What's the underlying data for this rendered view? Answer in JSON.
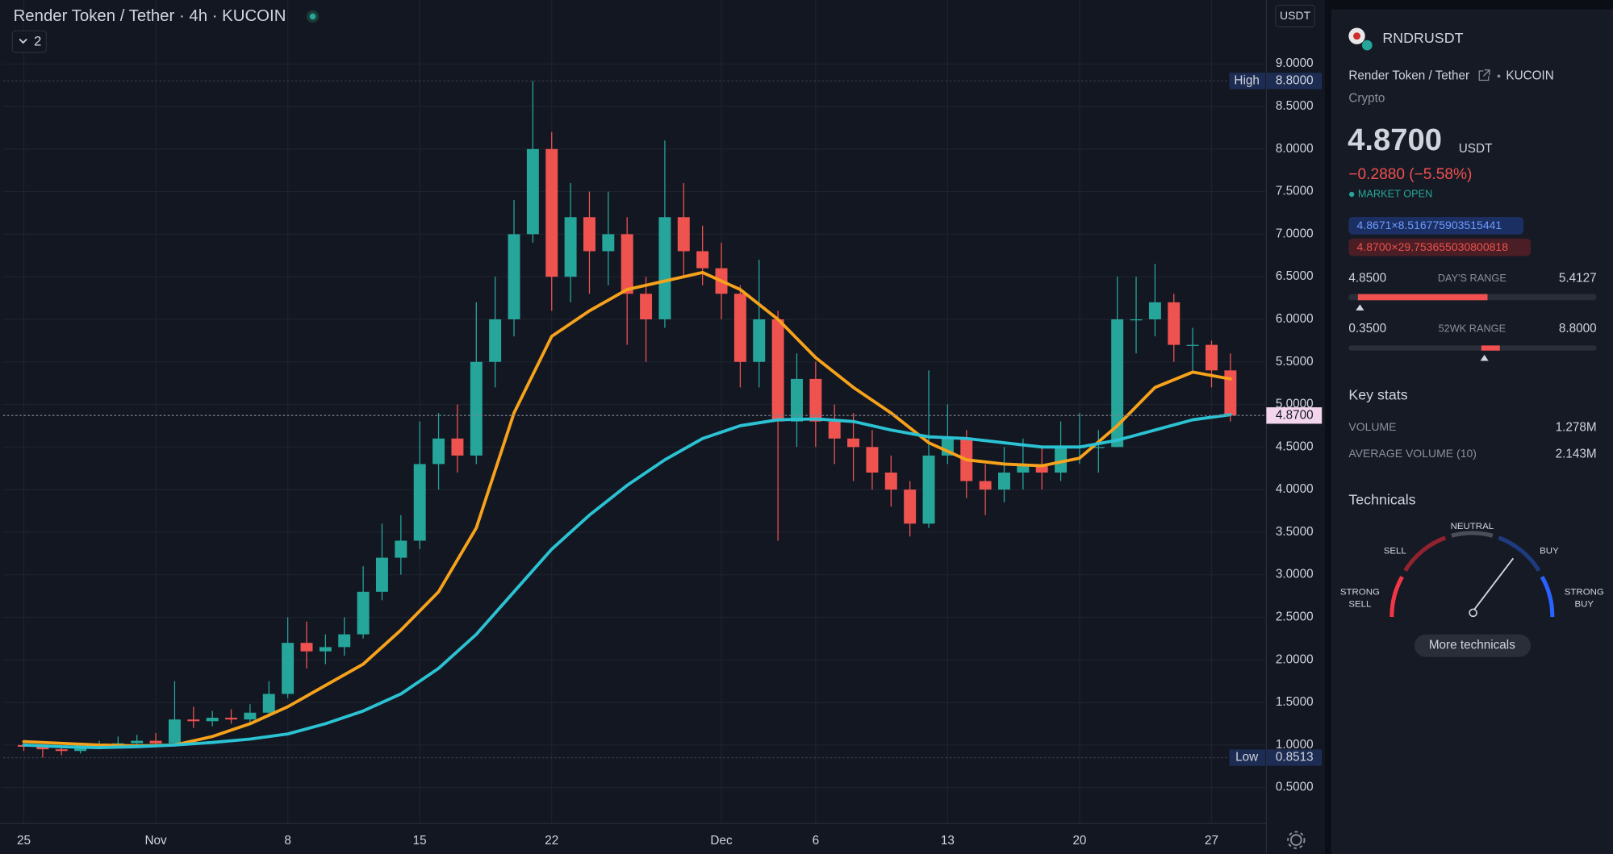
{
  "header": {
    "title": "Render Token / Tether · 4h · KUCOIN",
    "indicators": "2",
    "currency": "USDT"
  },
  "chart_data": {
    "type": "candlestick",
    "x": [
      0,
      1,
      2,
      3,
      4,
      5,
      6,
      7,
      8,
      9,
      10,
      11,
      12,
      13,
      14,
      15,
      16,
      17,
      18,
      19,
      20,
      21,
      22,
      23,
      24,
      25,
      26,
      27,
      28,
      29,
      30,
      31,
      32,
      33,
      34,
      35,
      36,
      37,
      38,
      39,
      40,
      41,
      42,
      43,
      44,
      45,
      46,
      47,
      48,
      49,
      50,
      51,
      52,
      53,
      54,
      55,
      56,
      57,
      58,
      59,
      60,
      61,
      62,
      63,
      64
    ],
    "open": [
      1.0,
      0.98,
      0.95,
      0.93,
      0.97,
      1.0,
      1.02,
      1.05,
      1.02,
      1.3,
      1.28,
      1.32,
      1.3,
      1.38,
      1.6,
      2.2,
      2.1,
      2.15,
      2.3,
      2.8,
      3.2,
      3.4,
      4.3,
      4.6,
      4.4,
      5.5,
      6.0,
      7.0,
      8.0,
      6.5,
      7.2,
      6.8,
      7.0,
      6.3,
      6.0,
      7.2,
      6.8,
      6.6,
      6.3,
      5.5,
      6.0,
      4.8,
      5.3,
      4.8,
      4.6,
      4.5,
      4.2,
      4.0,
      3.6,
      4.4,
      4.6,
      4.1,
      4.0,
      4.2,
      4.3,
      4.2,
      4.5,
      4.5,
      4.5,
      6.0,
      6.0,
      6.2,
      5.7,
      5.7,
      5.4
    ],
    "high": [
      1.04,
      1.0,
      0.98,
      1.0,
      1.05,
      1.1,
      1.12,
      1.14,
      1.75,
      1.45,
      1.4,
      1.42,
      1.48,
      1.75,
      2.5,
      2.45,
      2.3,
      2.5,
      3.1,
      3.6,
      3.7,
      4.8,
      4.9,
      5.0,
      6.2,
      6.5,
      7.4,
      8.8,
      8.2,
      7.6,
      7.5,
      7.5,
      7.2,
      6.5,
      8.1,
      7.6,
      7.1,
      6.9,
      6.4,
      6.7,
      6.1,
      5.6,
      5.5,
      5.0,
      4.9,
      4.7,
      4.4,
      4.1,
      5.4,
      5.0,
      4.7,
      4.3,
      4.5,
      4.6,
      4.5,
      4.8,
      4.9,
      4.7,
      6.5,
      6.5,
      6.65,
      6.3,
      5.9,
      5.75,
      5.6
    ],
    "low": [
      0.93,
      0.8513,
      0.88,
      0.9,
      0.95,
      0.97,
      1.0,
      0.98,
      1.0,
      1.2,
      1.22,
      1.25,
      1.26,
      1.35,
      1.55,
      1.9,
      1.95,
      2.05,
      2.25,
      2.7,
      3.0,
      3.3,
      4.0,
      4.2,
      4.3,
      5.2,
      5.8,
      6.9,
      6.1,
      6.2,
      6.3,
      6.4,
      5.7,
      5.5,
      5.9,
      6.5,
      6.4,
      6.0,
      5.2,
      5.2,
      3.4,
      4.5,
      4.5,
      4.3,
      4.1,
      4.0,
      3.8,
      3.45,
      3.55,
      4.3,
      3.9,
      3.7,
      3.85,
      4.0,
      4.0,
      4.1,
      4.3,
      4.2,
      4.5,
      5.6,
      5.8,
      5.5,
      5.4,
      5.2,
      4.8
    ],
    "close": [
      0.98,
      0.95,
      0.93,
      0.97,
      1.0,
      1.02,
      1.05,
      1.02,
      1.3,
      1.28,
      1.32,
      1.3,
      1.38,
      1.6,
      2.2,
      2.1,
      2.15,
      2.3,
      2.8,
      3.2,
      3.4,
      4.3,
      4.6,
      4.4,
      5.5,
      6.0,
      7.0,
      8.0,
      6.5,
      7.2,
      6.8,
      7.0,
      6.3,
      6.0,
      7.2,
      6.8,
      6.6,
      6.3,
      5.5,
      6.0,
      4.8,
      5.3,
      4.8,
      4.6,
      4.5,
      4.2,
      4.0,
      3.6,
      4.4,
      4.6,
      4.1,
      4.0,
      4.2,
      4.3,
      4.2,
      4.5,
      4.5,
      4.5,
      6.0,
      6.0,
      6.2,
      5.7,
      5.7,
      5.4,
      4.87
    ],
    "up_color": "#26a69a",
    "down_color": "#ef5350",
    "series": [
      {
        "color": "#f7a21b",
        "x": [
          0,
          2,
          4,
          6,
          8,
          10,
          12,
          14,
          16,
          18,
          20,
          22,
          24,
          26,
          28,
          30,
          32,
          34,
          36,
          38,
          40,
          42,
          44,
          46,
          48,
          50,
          52,
          54,
          56,
          58,
          60,
          62,
          64
        ],
        "values": [
          1.04,
          1.02,
          1.0,
          0.99,
          1.0,
          1.1,
          1.25,
          1.45,
          1.7,
          1.95,
          2.35,
          2.8,
          3.55,
          4.9,
          5.8,
          6.1,
          6.35,
          6.45,
          6.55,
          6.35,
          6.0,
          5.55,
          5.2,
          4.9,
          4.55,
          4.35,
          4.3,
          4.28,
          4.37,
          4.75,
          5.2,
          5.38,
          5.3
        ]
      },
      {
        "color": "#2bc3d3",
        "x": [
          0,
          2,
          4,
          6,
          8,
          10,
          12,
          14,
          16,
          18,
          20,
          22,
          24,
          26,
          28,
          30,
          32,
          34,
          36,
          38,
          40,
          42,
          44,
          46,
          48,
          50,
          52,
          54,
          56,
          58,
          60,
          62,
          64
        ],
        "values": [
          1.0,
          0.98,
          0.97,
          0.98,
          1.0,
          1.03,
          1.07,
          1.13,
          1.25,
          1.4,
          1.6,
          1.9,
          2.3,
          2.8,
          3.3,
          3.7,
          4.05,
          4.35,
          4.6,
          4.75,
          4.82,
          4.83,
          4.8,
          4.7,
          4.62,
          4.6,
          4.55,
          4.5,
          4.5,
          4.58,
          4.7,
          4.82,
          4.88
        ]
      }
    ],
    "xlim": [
      -1.1,
      65.85
    ],
    "ylim": [
      0.09,
      9.75
    ],
    "xticks": [
      {
        "value": 0,
        "label": "25"
      },
      {
        "value": 7,
        "label": "Nov"
      },
      {
        "value": 14,
        "label": "8"
      },
      {
        "value": 21,
        "label": "15"
      },
      {
        "value": 28,
        "label": "22"
      },
      {
        "value": 37,
        "label": "Dec"
      },
      {
        "value": 42,
        "label": "6"
      },
      {
        "value": 49,
        "label": "13"
      },
      {
        "value": 56,
        "label": "20"
      },
      {
        "value": 63,
        "label": "27"
      }
    ],
    "yticks": [
      {
        "value": 0.5,
        "label": "0.5000"
      },
      {
        "value": 1,
        "label": "1.0000"
      },
      {
        "value": 1.5,
        "label": "1.5000"
      },
      {
        "value": 2,
        "label": "2.0000"
      },
      {
        "value": 2.5,
        "label": "2.5000"
      },
      {
        "value": 3,
        "label": "3.0000"
      },
      {
        "value": 3.5,
        "label": "3.5000"
      },
      {
        "value": 4,
        "label": "4.0000"
      },
      {
        "value": 4.5,
        "label": "4.5000"
      },
      {
        "value": 5,
        "label": "5.0000"
      },
      {
        "value": 5.5,
        "label": "5.5000"
      },
      {
        "value": 6,
        "label": "6.0000"
      },
      {
        "value": 6.5,
        "label": "6.5000"
      },
      {
        "value": 7,
        "label": "7.0000"
      },
      {
        "value": 7.5,
        "label": "7.5000"
      },
      {
        "value": 8,
        "label": "8.0000"
      },
      {
        "value": 8.5,
        "label": "8.5000"
      },
      {
        "value": 9,
        "label": "9.0000"
      }
    ],
    "grid": true,
    "markers": {
      "high": {
        "label": "High",
        "value": 8.8,
        "value_label": "8.8000"
      },
      "low": {
        "label": "Low",
        "value": 0.8513,
        "value_label": "0.8513"
      },
      "last": {
        "value": 4.87,
        "value_label": "4.8700"
      }
    }
  },
  "sidebar": {
    "symbol": "RNDRUSDT",
    "name": "Render Token / Tether",
    "exchange": "KUCOIN",
    "category": "Crypto",
    "price": "4.8700",
    "currency": "USDT",
    "change": "−0.2880 (−5.58%)",
    "status": "MARKET OPEN",
    "bid": "4.8671×8.516775903515441",
    "ask": "4.8700×29.753655030800818",
    "days_range": {
      "low": "4.8500",
      "label": "DAY'S RANGE",
      "high": "5.4127"
    },
    "wk52_range": {
      "low": "0.3500",
      "label": "52WK RANGE",
      "high": "8.8000"
    },
    "key_stats": {
      "title": "Key stats",
      "rows": [
        [
          "VOLUME",
          "1.278M"
        ],
        [
          "AVERAGE VOLUME (10)",
          "2.143M"
        ]
      ]
    },
    "technicals": {
      "title": "Technicals",
      "strong_sell": [
        "STRONG",
        "SELL"
      ],
      "sell": "SELL",
      "neutral": "NEUTRAL",
      "buy": "BUY",
      "strong_buy": [
        "STRONG",
        "BUY"
      ],
      "button": "More technicals"
    }
  }
}
